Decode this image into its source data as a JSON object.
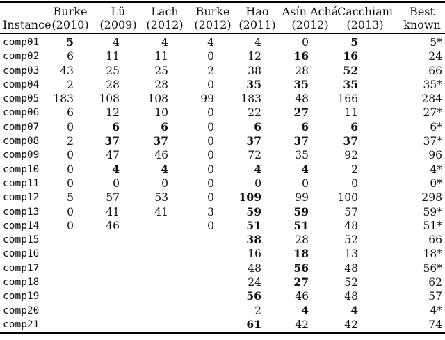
{
  "table": {
    "headers": [
      {
        "line1": "",
        "line2": "Instance"
      },
      {
        "line1": "Burke",
        "line2": "(2010)"
      },
      {
        "line1": "Lü",
        "line2": "(2009)"
      },
      {
        "line1": "Lach",
        "line2": "(2012)"
      },
      {
        "line1": "Burke",
        "line2": "(2012)"
      },
      {
        "line1": "Hao",
        "line2": "(2011)"
      },
      {
        "line1": "Asín Achá",
        "line2": "(2012)"
      },
      {
        "line1": "Cacchiani",
        "line2": "(2013)"
      },
      {
        "line1": "Best",
        "line2": "known"
      }
    ],
    "rows": [
      {
        "instance": "comp01",
        "values": [
          "5",
          "4",
          "4",
          "4",
          "4",
          "0",
          "5",
          "5*"
        ],
        "bold": [
          0,
          6
        ]
      },
      {
        "instance": "comp02",
        "values": [
          "6",
          "11",
          "11",
          "0",
          "12",
          "16",
          "16",
          "24"
        ],
        "bold": [
          5,
          6
        ]
      },
      {
        "instance": "comp03",
        "values": [
          "43",
          "25",
          "25",
          "2",
          "38",
          "28",
          "52",
          "66"
        ],
        "bold": [
          6
        ]
      },
      {
        "instance": "comp04",
        "values": [
          "2",
          "28",
          "28",
          "0",
          "35",
          "35",
          "35",
          "35*"
        ],
        "bold": [
          4,
          5,
          6
        ]
      },
      {
        "instance": "comp05",
        "values": [
          "183",
          "108",
          "108",
          "99",
          "183",
          "48",
          "166",
          "284"
        ],
        "bold": []
      },
      {
        "instance": "comp06",
        "values": [
          "6",
          "12",
          "10",
          "0",
          "22",
          "27",
          "11",
          "27*"
        ],
        "bold": [
          5
        ]
      },
      {
        "instance": "comp07",
        "values": [
          "0",
          "6",
          "6",
          "0",
          "6",
          "6",
          "6",
          "6*"
        ],
        "bold": [
          1,
          2,
          4,
          5,
          6
        ]
      },
      {
        "instance": "comp08",
        "values": [
          "2",
          "37",
          "37",
          "0",
          "37",
          "37",
          "37",
          "37*"
        ],
        "bold": [
          1,
          2,
          4,
          5,
          6
        ]
      },
      {
        "instance": "comp09",
        "values": [
          "0",
          "47",
          "46",
          "0",
          "72",
          "35",
          "92",
          "96"
        ],
        "bold": []
      },
      {
        "instance": "comp10",
        "values": [
          "0",
          "4",
          "4",
          "0",
          "4",
          "4",
          "2",
          "4*"
        ],
        "bold": [
          1,
          2,
          4,
          5
        ]
      },
      {
        "instance": "comp11",
        "values": [
          "0",
          "0",
          "0",
          "0",
          "0",
          "0",
          "0",
          "0*"
        ],
        "bold": []
      },
      {
        "instance": "comp12",
        "values": [
          "5",
          "57",
          "53",
          "0",
          "109",
          "99",
          "100",
          "298"
        ],
        "bold": [
          4
        ]
      },
      {
        "instance": "comp13",
        "values": [
          "0",
          "41",
          "41",
          "3",
          "59",
          "59",
          "57",
          "59*"
        ],
        "bold": [
          4,
          5
        ]
      },
      {
        "instance": "comp14",
        "values": [
          "0",
          "46",
          "",
          "0",
          "51",
          "51",
          "48",
          "51*"
        ],
        "bold": [
          4,
          5
        ]
      },
      {
        "instance": "comp15",
        "values": [
          "",
          "",
          "",
          "",
          "38",
          "28",
          "52",
          "66"
        ],
        "bold": [
          4
        ]
      },
      {
        "instance": "comp16",
        "values": [
          "",
          "",
          "",
          "",
          "16",
          "18",
          "13",
          "18*"
        ],
        "bold": [
          5
        ]
      },
      {
        "instance": "comp17",
        "values": [
          "",
          "",
          "",
          "",
          "48",
          "56",
          "48",
          "56*"
        ],
        "bold": [
          5
        ]
      },
      {
        "instance": "comp18",
        "values": [
          "",
          "",
          "",
          "",
          "24",
          "27",
          "52",
          "62"
        ],
        "bold": [
          5
        ]
      },
      {
        "instance": "comp19",
        "values": [
          "",
          "",
          "",
          "",
          "56",
          "46",
          "48",
          "57"
        ],
        "bold": [
          4
        ]
      },
      {
        "instance": "comp20",
        "values": [
          "",
          "",
          "",
          "",
          "2",
          "4",
          "4",
          "4*"
        ],
        "bold": [
          5,
          6
        ]
      },
      {
        "instance": "comp21",
        "values": [
          "",
          "",
          "",
          "",
          "61",
          "42",
          "42",
          "74"
        ],
        "bold": [
          4
        ]
      }
    ]
  }
}
